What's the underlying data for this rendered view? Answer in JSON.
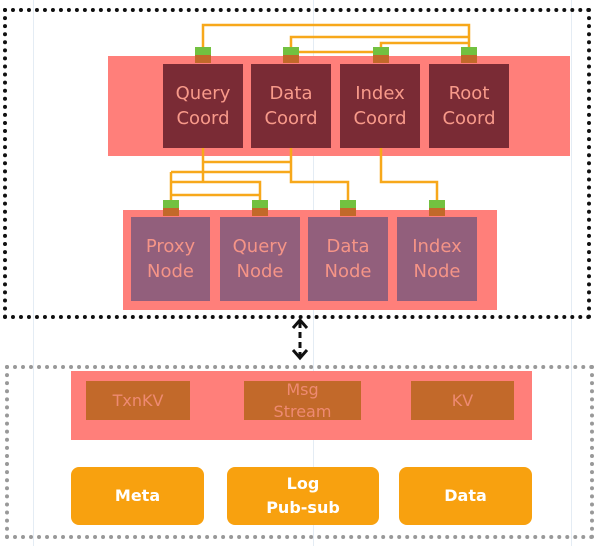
{
  "coordinators": [
    {
      "label": "Query\nCoord"
    },
    {
      "label": "Data\nCoord"
    },
    {
      "label": "Index\nCoord"
    },
    {
      "label": "Root\nCoord"
    }
  ],
  "nodes": [
    {
      "label": "Proxy\nNode"
    },
    {
      "label": "Query\nNode"
    },
    {
      "label": "Data\nNode"
    },
    {
      "label": "Index\nNode"
    }
  ],
  "storage_services": [
    {
      "label": "TxnKV"
    },
    {
      "label": "Msg\nStream"
    },
    {
      "label": "KV"
    }
  ],
  "storage_types": [
    {
      "label": "Meta"
    },
    {
      "label": "Log\nPub-sub"
    },
    {
      "label": "Data"
    }
  ],
  "colors": {
    "coord": "#7a2b35",
    "node": "#925f7c",
    "band": "#ff7f7a",
    "wire": "#f7a81b",
    "connector": "#72c140",
    "storage": "#c2692a",
    "orange": "#f8a10f"
  }
}
